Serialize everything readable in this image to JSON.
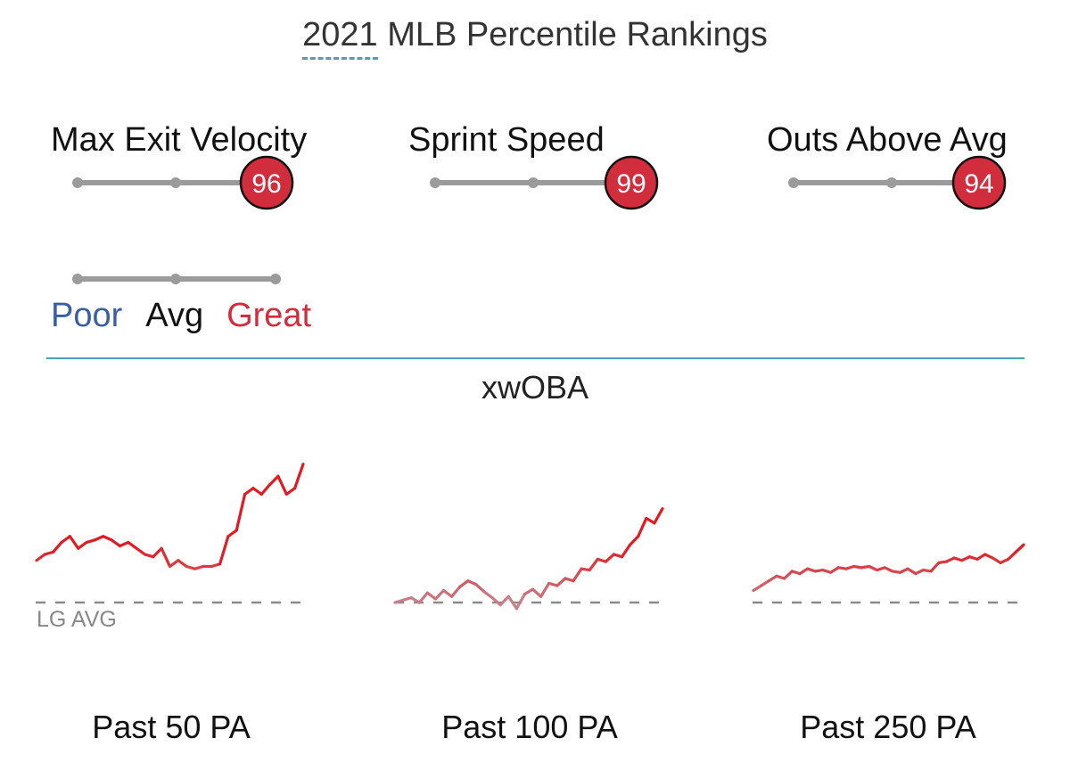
{
  "header": {
    "year": "2021",
    "title_rest": " MLB Percentile Rankings"
  },
  "metrics": [
    {
      "label": "Max Exit Velocity",
      "percentile": 96
    },
    {
      "label": "Sprint Speed",
      "percentile": 99
    },
    {
      "label": "Outs Above Avg",
      "percentile": 94
    }
  ],
  "legend": {
    "poor": "Poor",
    "avg": "Avg",
    "great": "Great",
    "colors": {
      "poor": "#3a5fa0",
      "avg": "#111111",
      "great": "#d22d3d"
    }
  },
  "section_title": "xwOBA",
  "lg_avg_label": "LG AVG",
  "chart_data": {
    "type": "line",
    "title": "xwOBA",
    "reference_line": "LG AVG",
    "series": [
      {
        "name": "Past 50 PA",
        "values": [
          0.35,
          0.4,
          0.42,
          0.5,
          0.55,
          0.45,
          0.5,
          0.52,
          0.55,
          0.52,
          0.47,
          0.5,
          0.45,
          0.4,
          0.38,
          0.45,
          0.3,
          0.35,
          0.3,
          0.28,
          0.3,
          0.3,
          0.32,
          0.55,
          0.6,
          0.9,
          0.95,
          0.9,
          0.98,
          1.05,
          0.9,
          0.95,
          1.15
        ]
      },
      {
        "name": "Past 100 PA",
        "values": [
          0.0,
          0.02,
          0.04,
          0.0,
          0.08,
          0.03,
          0.1,
          0.05,
          0.13,
          0.18,
          0.15,
          0.09,
          0.04,
          -0.02,
          0.05,
          -0.05,
          0.07,
          0.11,
          0.05,
          0.16,
          0.14,
          0.2,
          0.18,
          0.28,
          0.27,
          0.36,
          0.34,
          0.4,
          0.38,
          0.48,
          0.55,
          0.7,
          0.66,
          0.78
        ]
      },
      {
        "name": "Past 250 PA",
        "values": [
          0.1,
          0.14,
          0.18,
          0.22,
          0.2,
          0.26,
          0.24,
          0.28,
          0.26,
          0.27,
          0.25,
          0.29,
          0.28,
          0.3,
          0.29,
          0.3,
          0.27,
          0.29,
          0.26,
          0.25,
          0.28,
          0.24,
          0.27,
          0.26,
          0.33,
          0.34,
          0.37,
          0.35,
          0.38,
          0.36,
          0.4,
          0.37,
          0.33,
          0.36,
          0.42,
          0.48
        ]
      }
    ]
  },
  "captions": [
    "Past 50 PA",
    "Past 100 PA",
    "Past 250 PA"
  ]
}
